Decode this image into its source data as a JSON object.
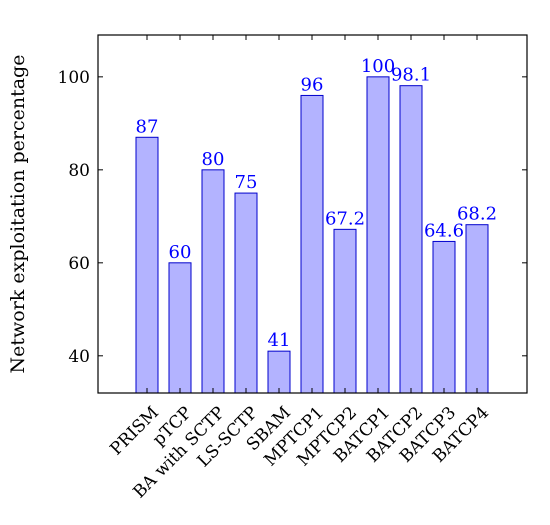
{
  "chart_data": {
    "type": "bar",
    "categories": [
      "PRISM",
      "pTCP",
      "BA with SCTP",
      "LS-SCTP",
      "SBAM",
      "MPTCP1",
      "MPTCP2",
      "BATCP1",
      "BATCP2",
      "BATCP3",
      "BATCP4"
    ],
    "values": [
      87,
      60,
      80,
      75,
      41,
      96,
      67.2,
      100,
      98.1,
      64.6,
      68.2
    ],
    "value_labels": [
      "87",
      "60",
      "80",
      "75",
      "41",
      "96",
      "67.2",
      "100",
      "98.1",
      "64.6",
      "68.2"
    ],
    "title": "",
    "xlabel": "",
    "ylabel": "Network exploitation percentage",
    "ylim": [
      32,
      109
    ],
    "yticks": [
      40,
      60,
      80,
      100
    ],
    "ytick_labels": [
      "40",
      "60",
      "80",
      "100"
    ],
    "grid": false,
    "legend": "none",
    "colors": {
      "bar_fill": "#b3b3ff",
      "bar_stroke": "#0000cc",
      "label": "#0000ff",
      "axis": "#000000"
    }
  }
}
